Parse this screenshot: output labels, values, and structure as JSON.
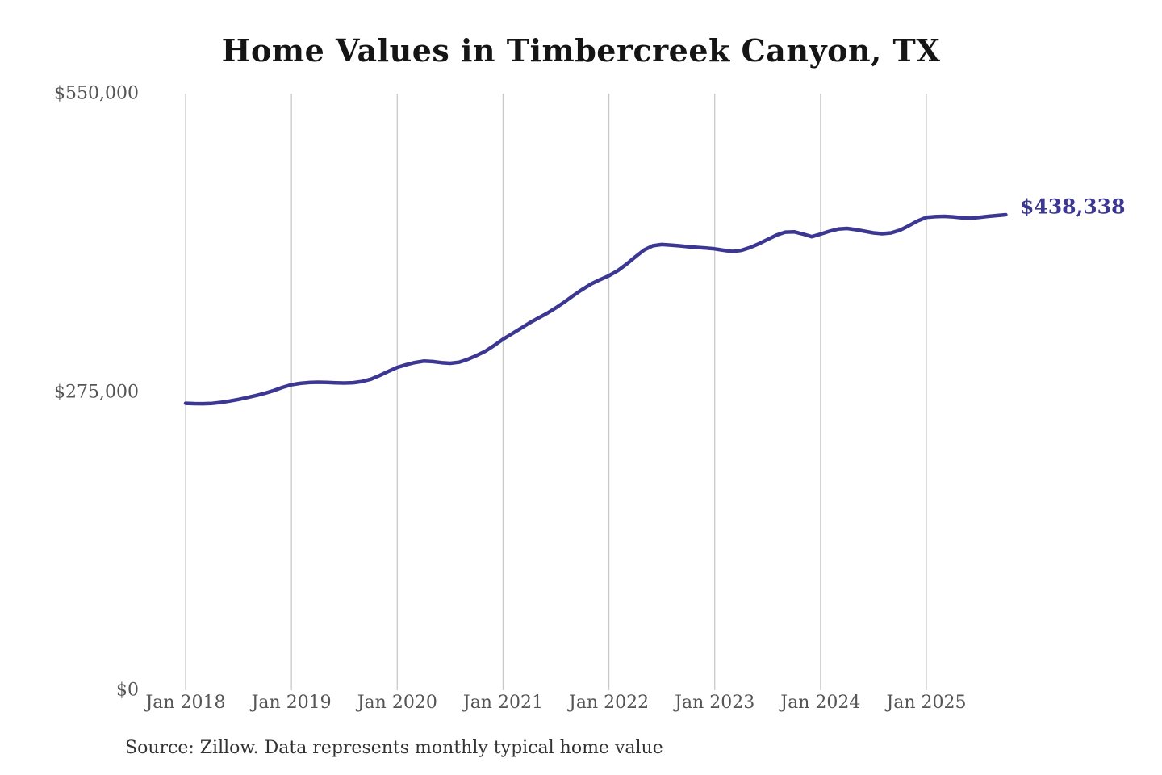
{
  "chart_data": {
    "type": "line",
    "title": "Home Values in Timbercreek Canyon, TX",
    "source_note": "Source: Zillow. Data represents monthly typical home value",
    "end_label": "$438,338",
    "end_value": 438338,
    "xlabel": "",
    "ylabel": "",
    "ylim": [
      0,
      550000
    ],
    "y_tick_values": [
      0,
      275000,
      550000
    ],
    "y_tick_labels": [
      "$0",
      "$275,000",
      "$550,000"
    ],
    "x_tick_labels": [
      "Jan 2018",
      "Jan 2019",
      "Jan 2020",
      "Jan 2021",
      "Jan 2022",
      "Jan 2023",
      "Jan 2024",
      "Jan 2025"
    ],
    "grid": "vertical-year-lines-only",
    "legend": "none",
    "colors": {
      "line": "#3c3792",
      "end_label": "#3c3792",
      "grid": "#c8c8c8",
      "title": "#151515",
      "axis_labels": "#555555",
      "source": "#333333",
      "background": "#ffffff"
    },
    "series": [
      {
        "name": "Typical home value",
        "unit": "USD",
        "frequency": "monthly",
        "start": "2018-01",
        "end": "2025-10",
        "values": [
          264500,
          264200,
          264100,
          264400,
          265300,
          266600,
          268100,
          269900,
          271700,
          273800,
          276300,
          279200,
          281600,
          282900,
          283600,
          283900,
          283700,
          283400,
          283200,
          283500,
          284600,
          286700,
          290100,
          294000,
          297600,
          300100,
          302100,
          303400,
          303000,
          302000,
          301400,
          302400,
          305100,
          308600,
          312600,
          317900,
          323600,
          328600,
          333600,
          338600,
          343100,
          347600,
          352600,
          358100,
          364100,
          369600,
          374600,
          378500,
          382200,
          386800,
          392800,
          399600,
          405900,
          409800,
          410900,
          410400,
          409700,
          408900,
          408200,
          407600,
          406900,
          405600,
          404500,
          405500,
          408100,
          411600,
          415600,
          419500,
          422300,
          422600,
          420600,
          418100,
          420500,
          423100,
          425100,
          425700,
          424600,
          423100,
          421600,
          420900,
          421600,
          424100,
          428200,
          432600,
          435900,
          436600,
          436900,
          436400,
          435600,
          435100,
          435900,
          436900,
          437600,
          438338
        ]
      }
    ]
  }
}
